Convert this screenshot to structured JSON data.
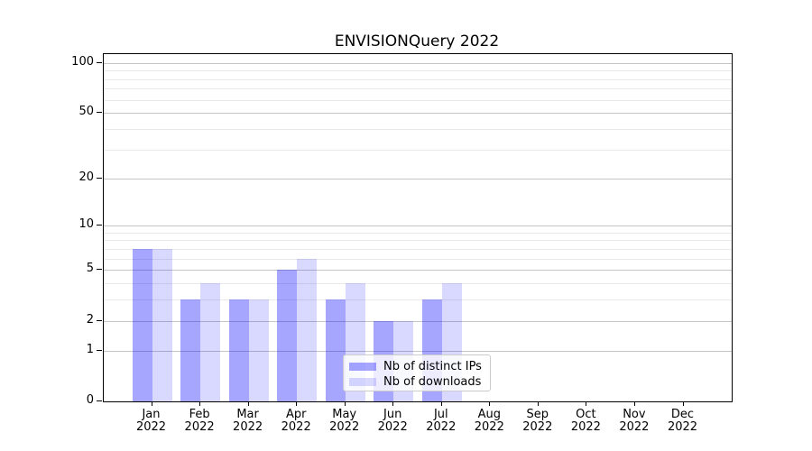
{
  "chart_data": {
    "type": "bar",
    "title": "ENVISIONQuery 2022",
    "categories": [
      "Jan",
      "Feb",
      "Mar",
      "Apr",
      "May",
      "Jun",
      "Jul",
      "Aug",
      "Sep",
      "Oct",
      "Nov",
      "Dec"
    ],
    "year_label": "2022",
    "series": [
      {
        "name": "Nb of distinct IPs",
        "color": "#0000ff59",
        "values": [
          7,
          3,
          3,
          5,
          3,
          2,
          3,
          0,
          0,
          0,
          0,
          0
        ]
      },
      {
        "name": "Nb of downloads",
        "color": "#0000ff26",
        "values": [
          7,
          4,
          3,
          6,
          4,
          2,
          4,
          0,
          0,
          0,
          0,
          0
        ]
      }
    ],
    "y_axis": {
      "scale": "log1p",
      "ticks": [
        100,
        50,
        20,
        10,
        5,
        2,
        1,
        0
      ],
      "minor_ticks": [
        90,
        80,
        70,
        60,
        40,
        30,
        9,
        8,
        7,
        6,
        4,
        3
      ]
    },
    "legend": {
      "position": "lower center",
      "entries": [
        "Nb of distinct IPs",
        "Nb of downloads"
      ]
    },
    "grid": true,
    "colors": {
      "major_grid": "#c6c6c6",
      "minor_grid": "#e9e9e9",
      "axis": "#000000",
      "background": "#ffffff"
    }
  }
}
